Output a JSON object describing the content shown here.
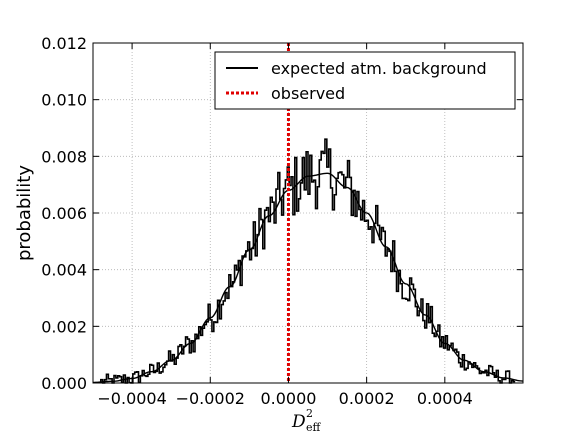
{
  "chart_data": {
    "type": "line",
    "title": "",
    "xlabel_main": "D",
    "xlabel_sub": "eff",
    "xlabel_sup": "2",
    "ylabel": "probability",
    "xlim": [
      -0.0005,
      0.0006
    ],
    "ylim": [
      0.0,
      0.012
    ],
    "xticks": [
      -0.0004,
      -0.0002,
      0.0,
      0.0002,
      0.0004
    ],
    "xtick_labels": [
      "−0.0004",
      "−0.0002",
      "0.0000",
      "0.0002",
      "0.0004"
    ],
    "yticks": [
      0.0,
      0.002,
      0.004,
      0.006,
      0.008,
      0.01,
      0.012
    ],
    "ytick_labels": [
      "0.000",
      "0.002",
      "0.004",
      "0.006",
      "0.008",
      "0.010",
      "0.012"
    ],
    "grid": true,
    "legend_position": "top-right",
    "series": [
      {
        "name": "expected atm. background",
        "style": "solid",
        "color": "#000000",
        "x": [
          -0.0005,
          -0.00045,
          -0.0004,
          -0.00035,
          -0.0003,
          -0.00025,
          -0.0002,
          -0.00015,
          -0.0001,
          -5e-05,
          0.0,
          5e-05,
          0.0001,
          0.00015,
          0.0002,
          0.00025,
          0.0003,
          0.00035,
          0.0004,
          0.00045,
          0.0005,
          0.00055,
          0.0006
        ],
        "y": [
          2e-05,
          6e-05,
          0.00016,
          0.0004,
          0.0008,
          0.0014,
          0.0023,
          0.0034,
          0.0047,
          0.0059,
          0.0068,
          0.0073,
          0.0074,
          0.0069,
          0.006,
          0.0048,
          0.0035,
          0.0024,
          0.0014,
          0.0008,
          0.0004,
          0.00018,
          7e-05
        ]
      },
      {
        "name": "observed",
        "style": "dotted-vertical",
        "color": "#e00000",
        "x_value": 0.0
      }
    ]
  }
}
